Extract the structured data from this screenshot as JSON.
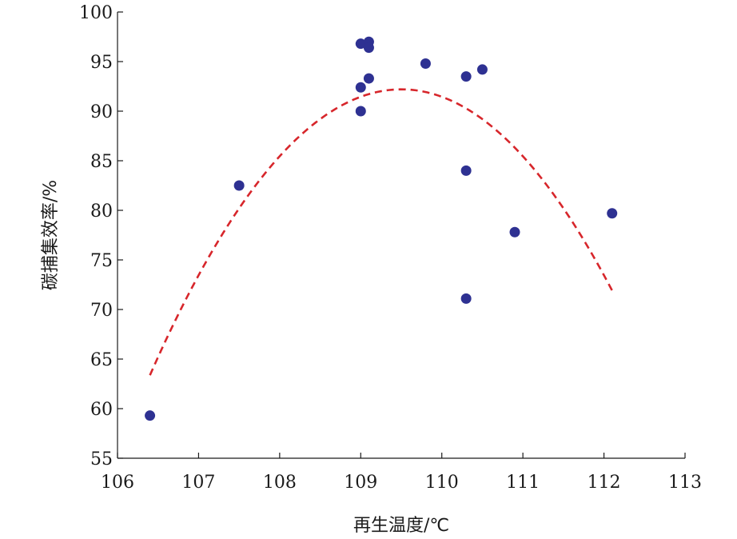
{
  "chart_data": {
    "type": "scatter",
    "xlabel": "再生温度/℃",
    "ylabel": "碳捕集效率/%",
    "xlim": [
      106,
      113
    ],
    "ylim": [
      55,
      100
    ],
    "xticks": [
      106,
      107,
      108,
      109,
      110,
      111,
      112,
      113
    ],
    "yticks": [
      55,
      60,
      65,
      70,
      75,
      80,
      85,
      90,
      95,
      100
    ],
    "grid": false,
    "series": [
      {
        "kind": "points",
        "color": "#2e3192",
        "points": [
          [
            106.4,
            59.3
          ],
          [
            107.5,
            82.5
          ],
          [
            109.0,
            96.8
          ],
          [
            109.1,
            97.0
          ],
          [
            109.1,
            96.4
          ],
          [
            109.0,
            92.4
          ],
          [
            109.1,
            93.3
          ],
          [
            109.0,
            90.0
          ],
          [
            109.8,
            94.8
          ],
          [
            110.3,
            93.5
          ],
          [
            110.5,
            94.2
          ],
          [
            110.3,
            84.0
          ],
          [
            110.3,
            71.1
          ],
          [
            110.9,
            77.8
          ],
          [
            112.1,
            79.7
          ]
        ]
      },
      {
        "kind": "fit-curve",
        "style": "dashed",
        "color": "#d7262b",
        "x_range": [
          106.4,
          112.1
        ],
        "vertex": [
          109.5,
          92.2
        ],
        "coeff_a": -3.0
      }
    ]
  }
}
